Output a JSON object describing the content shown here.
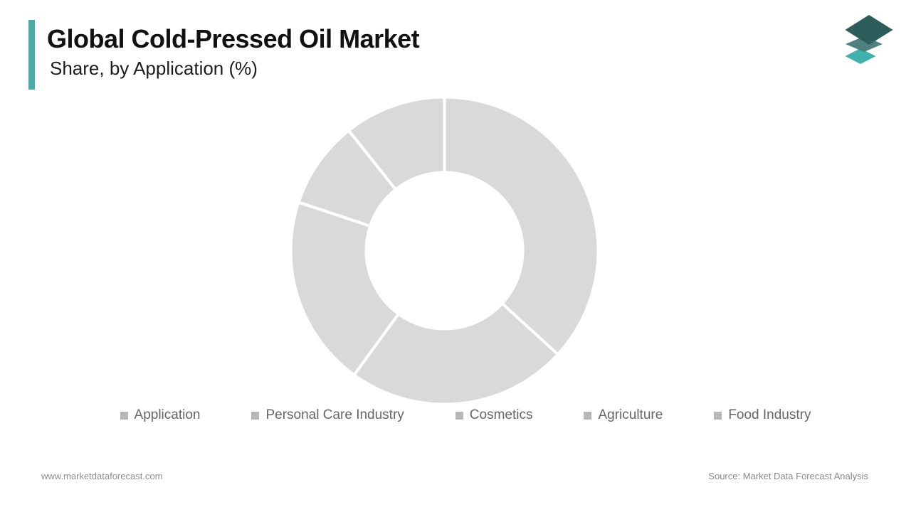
{
  "header": {
    "title": "Global Cold-Pressed Oil Market",
    "subtitle": "Share, by Application (%)",
    "accent_color": "#4aaba8"
  },
  "logo": {
    "label": "market-data-forecast-logo",
    "colors": {
      "top": "#2d5e5b",
      "middle": "#4e807d",
      "bottom": "#3fb2ad"
    }
  },
  "chart_data": {
    "type": "pie",
    "variant": "donut",
    "title": "Global Cold-Pressed Oil Market",
    "subtitle": "Share, by Application (%)",
    "labels": [
      "Application",
      "Personal Care Industry",
      "Cosmetics",
      "Agriculture",
      "Food Industry"
    ],
    "values": [
      36.8,
      23.2,
      20.1,
      9.2,
      10.7
    ],
    "unit": "%",
    "start_angle_deg": 0,
    "direction": "clockwise",
    "outer_radius_px": 216,
    "inner_radius_px": 110,
    "slice_color": "#d9d9d9",
    "slice_border_color": "#ffffff",
    "slice_border_width": 4,
    "data_labels": "none",
    "legend_position": "bottom",
    "legend_marker_color": "#b7b7b7",
    "legend_text_color": "#666666"
  },
  "footer": {
    "left": "www.marketdataforecast.com",
    "right": "Source: Market Data Forecast Analysis"
  }
}
